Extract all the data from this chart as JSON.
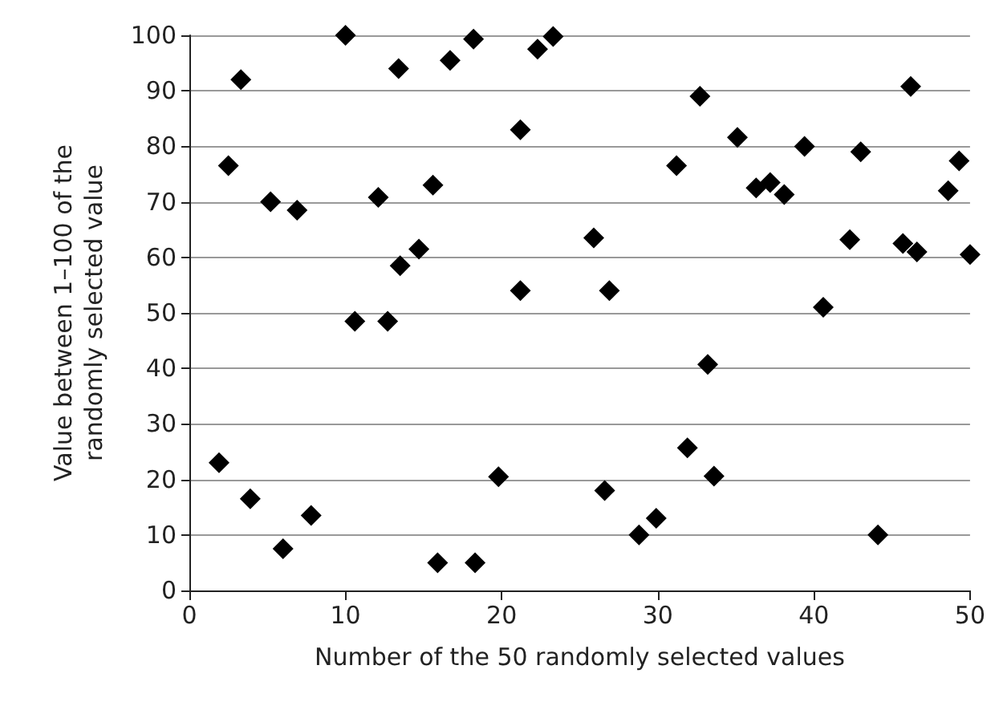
{
  "chart_data": {
    "type": "scatter",
    "xlabel": "Number of the 50 randomly selected values",
    "ylabel": "Value between 1–100 of the\nrandomly selected value",
    "x": [
      1.9,
      2.5,
      3.3,
      3.9,
      5.2,
      6.0,
      6.9,
      7.8,
      10.0,
      10.6,
      12.1,
      12.7,
      13.4,
      13.5,
      14.7,
      15.6,
      15.9,
      16.7,
      18.2,
      18.3,
      19.8,
      21.2,
      21.2,
      22.3,
      23.3,
      25.9,
      26.6,
      26.9,
      28.8,
      29.9,
      31.2,
      31.9,
      32.7,
      33.2,
      33.6,
      35.1,
      36.3,
      37.2,
      38.1,
      39.4,
      40.6,
      42.3,
      43.0,
      44.1,
      45.7,
      46.2,
      46.6,
      48.6,
      49.3,
      50
    ],
    "series": [
      {
        "color": "#000000",
        "values": [
          23,
          76.5,
          92,
          16.5,
          70,
          7.5,
          68.5,
          13.5,
          100,
          48.5,
          70.8,
          48.5,
          94,
          58.5,
          61.5,
          73,
          5,
          95.5,
          99.3,
          5,
          20.5,
          83,
          54,
          97.5,
          99.8,
          63.5,
          18,
          54,
          10,
          13,
          76.5,
          25.7,
          89,
          40.7,
          20.6,
          81.6,
          72.5,
          73.5,
          71.3,
          80,
          51,
          63.2,
          79,
          10,
          62.5,
          90.8,
          61,
          72,
          77.4,
          60.5
        ]
      }
    ],
    "xlim": [
      0,
      50
    ],
    "xticks": [
      0,
      10,
      20,
      30,
      40,
      50
    ],
    "ylim": [
      0,
      100
    ],
    "yticks": [
      0,
      10,
      20,
      30,
      40,
      50,
      60,
      70,
      80,
      90,
      100
    ],
    "grid": "y",
    "marker": "diamond"
  }
}
